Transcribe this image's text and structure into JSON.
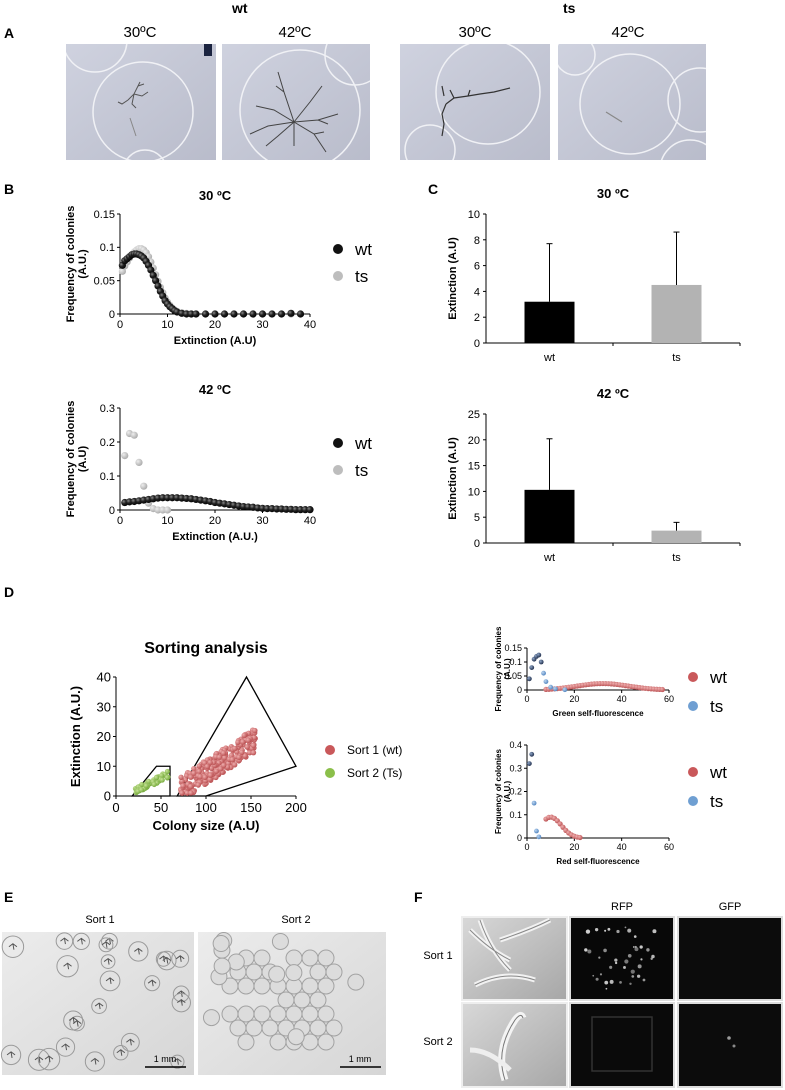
{
  "panel_letters": {
    "A": "A",
    "B": "B",
    "C": "C",
    "D": "D",
    "E": "E",
    "F": "F"
  },
  "panelA": {
    "group_wt": "wt",
    "group_ts": "ts",
    "images": [
      {
        "label": "30ºC"
      },
      {
        "label": "42ºC"
      },
      {
        "label": "30ºC"
      },
      {
        "label": "42ºC"
      }
    ]
  },
  "panelE": {
    "sort1_label": "Sort 1",
    "sort2_label": "Sort 2",
    "scale": "1 mm"
  },
  "panelF": {
    "col_rfp": "RFP",
    "col_gfp": "GFP",
    "row1": "Sort 1",
    "row2": "Sort 2"
  },
  "colors": {
    "wt_black": "#111111",
    "ts_grey": "#bdbdbd",
    "sort1_red": "#c9585a",
    "sort2_green": "#8bbf4a",
    "ts_blue": "#6f9fd2",
    "bar_black": "#000000",
    "bar_grey": "#b3b3b3"
  },
  "chart_data": [
    {
      "id": "B30",
      "type": "scatter",
      "title": "30 ºC",
      "xlabel": "Extinction (A.U)",
      "ylabel": "Frequency of colonies (A.U.)",
      "xlim": [
        0,
        40
      ],
      "ylim": [
        0,
        0.15
      ],
      "xticks": [
        0,
        10,
        20,
        30,
        40
      ],
      "yticks": [
        0,
        0.05,
        0.1,
        0.15
      ],
      "yticklabels": [
        "0",
        "0.05",
        "0.1",
        "0.15"
      ],
      "legend": [
        "wt",
        "ts"
      ],
      "series": [
        {
          "name": "wt",
          "x": [
            0.5,
            1,
            1.5,
            2,
            2.5,
            3,
            3.5,
            4,
            4.5,
            5,
            5.5,
            6,
            6.5,
            7,
            7.5,
            8,
            8.5,
            9,
            9.5,
            10,
            10.5,
            11,
            11.5,
            12,
            13,
            14,
            15,
            16,
            18,
            20,
            22,
            24,
            26,
            28,
            30,
            32,
            34,
            36,
            38
          ],
          "y": [
            0.073,
            0.08,
            0.083,
            0.086,
            0.089,
            0.09,
            0.09,
            0.089,
            0.087,
            0.084,
            0.079,
            0.073,
            0.066,
            0.058,
            0.05,
            0.042,
            0.034,
            0.027,
            0.02,
            0.015,
            0.011,
            0.008,
            0.005,
            0.003,
            0.001,
            0,
            0,
            0,
            0,
            0,
            0,
            0,
            0,
            0,
            0,
            0,
            0,
            0.001,
            0
          ]
        },
        {
          "name": "ts",
          "x": [
            0.5,
            1,
            1.5,
            2,
            2.5,
            3,
            3.5,
            4,
            4.5,
            5,
            5.5,
            6,
            6.5,
            7,
            7.5,
            8,
            8.5,
            9,
            9.5,
            10,
            10.5,
            11,
            11.5,
            12,
            13,
            14,
            15,
            16,
            18,
            20,
            22,
            24,
            26,
            28,
            30,
            32,
            34,
            36,
            38
          ],
          "y": [
            0.064,
            0.072,
            0.078,
            0.084,
            0.089,
            0.093,
            0.096,
            0.098,
            0.098,
            0.096,
            0.092,
            0.086,
            0.078,
            0.069,
            0.059,
            0.049,
            0.04,
            0.032,
            0.024,
            0.018,
            0.013,
            0.009,
            0.006,
            0.004,
            0.002,
            0.001,
            0,
            0,
            0,
            0,
            0,
            0,
            0,
            0,
            0,
            0,
            0,
            0,
            0
          ]
        }
      ]
    },
    {
      "id": "B42",
      "type": "scatter",
      "title": "42 ºC",
      "xlabel": "Extinction (A.U.)",
      "ylabel": "Frequency of colonies (A.U)",
      "xlim": [
        0,
        40
      ],
      "ylim": [
        0,
        0.3
      ],
      "xticks": [
        0,
        10,
        20,
        30,
        40
      ],
      "yticks": [
        0,
        0.1,
        0.2,
        0.3
      ],
      "yticklabels": [
        "0",
        "0.1",
        "0.2",
        "0.3"
      ],
      "legend": [
        "wt",
        "ts"
      ],
      "series": [
        {
          "name": "wt",
          "x": [
            1,
            2,
            3,
            4,
            5,
            6,
            7,
            8,
            9,
            10,
            11,
            12,
            13,
            14,
            15,
            16,
            17,
            18,
            19,
            20,
            21,
            22,
            23,
            24,
            25,
            26,
            27,
            28,
            29,
            30,
            31,
            32,
            33,
            34,
            35,
            36,
            37,
            38,
            39,
            40
          ],
          "y": [
            0.022,
            0.024,
            0.025,
            0.027,
            0.029,
            0.031,
            0.033,
            0.035,
            0.036,
            0.036,
            0.036,
            0.036,
            0.035,
            0.034,
            0.033,
            0.031,
            0.029,
            0.027,
            0.025,
            0.022,
            0.02,
            0.018,
            0.016,
            0.014,
            0.012,
            0.01,
            0.009,
            0.008,
            0.006,
            0.005,
            0.004,
            0.004,
            0.003,
            0.003,
            0.002,
            0.002,
            0.001,
            0.001,
            0.001,
            0.001
          ]
        },
        {
          "name": "ts",
          "x": [
            1,
            2,
            3,
            4,
            5,
            6,
            7,
            8,
            9,
            10
          ],
          "y": [
            0.16,
            0.225,
            0.22,
            0.14,
            0.07,
            0.02,
            0.004,
            0.0,
            0.0,
            0.0
          ]
        }
      ]
    },
    {
      "id": "C30",
      "type": "bar",
      "title": "30 ºC",
      "ylabel": "Extinction (A.U)",
      "categories": [
        "wt",
        "ts"
      ],
      "values": [
        3.2,
        4.5
      ],
      "errors": [
        4.5,
        4.1
      ],
      "ylim": [
        0,
        10
      ],
      "yticks": [
        0,
        2,
        4,
        6,
        8,
        10
      ],
      "yticklabels": [
        "0",
        "2",
        "4",
        "6",
        "8",
        "10"
      ]
    },
    {
      "id": "C42",
      "type": "bar",
      "title": "42 ºC",
      "ylabel": "Extinction (A.U)",
      "categories": [
        "wt",
        "ts"
      ],
      "values": [
        10.3,
        2.4
      ],
      "errors": [
        9.9,
        1.6
      ],
      "ylim": [
        0,
        25
      ],
      "yticks": [
        0,
        5,
        10,
        15,
        20,
        25
      ],
      "yticklabels": [
        "0",
        "5",
        "10",
        "15",
        "20",
        "25"
      ]
    },
    {
      "id": "Dsort",
      "type": "scatter",
      "title": "Sorting analysis",
      "xlabel": "Colony size (A.U)",
      "ylabel": "Extinction (A.U.)",
      "xlim": [
        0,
        200
      ],
      "ylim": [
        0,
        40
      ],
      "xticks": [
        0,
        50,
        100,
        150,
        200
      ],
      "yticks": [
        0,
        10,
        20,
        30,
        40
      ],
      "yticklabels": [
        "0",
        "10",
        "20",
        "30",
        "40"
      ],
      "legend": [
        "Sort 1 (wt)",
        "Sort 2 (Ts)"
      ],
      "gate1": [
        [
          68,
          0
        ],
        [
          100,
          0
        ],
        [
          200,
          10
        ],
        [
          145,
          40
        ],
        [
          68,
          0
        ]
      ],
      "gate2": [
        [
          18,
          0
        ],
        [
          60,
          0
        ],
        [
          60,
          10
        ],
        [
          45,
          10
        ],
        [
          18,
          0
        ]
      ]
    },
    {
      "id": "Dgreen",
      "type": "scatter",
      "xlabel": "Green self-fluorescence",
      "ylabel": "Frequency of colonies (A.U.)",
      "xlim": [
        0,
        60
      ],
      "ylim": [
        0,
        0.15
      ],
      "xticks": [
        0,
        20,
        40,
        60
      ],
      "yticks": [
        0,
        0.05,
        0.1,
        0.15
      ],
      "yticklabels": [
        "0",
        "0.05",
        "0.1",
        "0.15"
      ],
      "legend": [
        "wt",
        "ts"
      ]
    },
    {
      "id": "Dred",
      "type": "scatter",
      "xlabel": "Red self-fluorescence",
      "ylabel": "Frequency of colonies (A.U.)",
      "xlim": [
        0,
        60
      ],
      "ylim": [
        0,
        0.4
      ],
      "xticks": [
        0,
        20,
        40,
        60
      ],
      "yticks": [
        0,
        0.1,
        0.2,
        0.3,
        0.4
      ],
      "yticklabels": [
        "0",
        "0.1",
        "0.2",
        "0.3",
        "0.4"
      ],
      "legend": [
        "wt",
        "ts"
      ]
    }
  ]
}
